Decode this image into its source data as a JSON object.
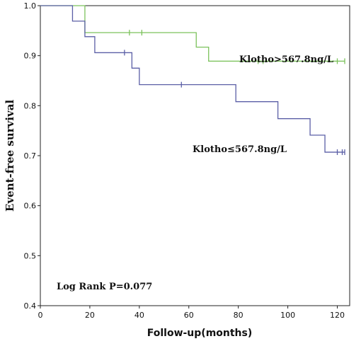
{
  "chart_data": {
    "type": "line",
    "subtype": "kaplan-meier",
    "xlabel": "Follow-up(months)",
    "ylabel": "Event-free survival",
    "xlim": [
      0,
      125
    ],
    "ylim": [
      0.4,
      1.0
    ],
    "xticks": [
      0,
      20,
      40,
      60,
      80,
      100,
      120
    ],
    "yticks": [
      0.4,
      0.5,
      0.6,
      0.7,
      0.8,
      0.9,
      1.0
    ],
    "grid": false,
    "annotation": "Log Rank P=0.077",
    "series": [
      {
        "name": "Klotho>567.8ng/L",
        "color": "#7cc25c",
        "steps": [
          [
            0,
            1.0
          ],
          [
            18,
            0.946
          ],
          [
            63,
            0.917
          ],
          [
            68,
            0.889
          ],
          [
            123,
            0.889
          ]
        ],
        "censored": [
          [
            36,
            0.946
          ],
          [
            41,
            0.946
          ],
          [
            88,
            0.889
          ],
          [
            90,
            0.889
          ],
          [
            120,
            0.889
          ],
          [
            123,
            0.889
          ]
        ]
      },
      {
        "name": "Klotho≤567.8ng/L",
        "color": "#5b5fa6",
        "steps": [
          [
            0,
            1.0
          ],
          [
            13,
            0.969
          ],
          [
            18,
            0.938
          ],
          [
            22,
            0.906
          ],
          [
            37,
            0.875
          ],
          [
            40,
            0.842
          ],
          [
            79,
            0.808
          ],
          [
            96,
            0.774
          ],
          [
            109,
            0.741
          ],
          [
            115,
            0.707
          ],
          [
            123,
            0.707
          ]
        ],
        "censored": [
          [
            34,
            0.906
          ],
          [
            57,
            0.842
          ],
          [
            120,
            0.707
          ],
          [
            122,
            0.707
          ],
          [
            123,
            0.707
          ]
        ]
      }
    ]
  }
}
